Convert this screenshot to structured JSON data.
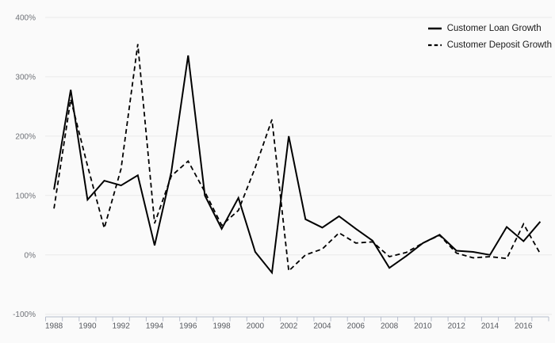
{
  "chart": {
    "legend": [
      {
        "label": "Customer Loan Growth",
        "style": "solid"
      },
      {
        "label": "Customer Deposit Growth",
        "style": "dashed"
      }
    ],
    "colors": {
      "background": "#fafafa",
      "line": "#000000",
      "grid": "#e9e9e9",
      "axis": "#b7bdcc",
      "x_tick_label": "#55585e",
      "y_tick_label": "#6e7177",
      "legend_text": "#1a1a1a"
    }
  },
  "chart_data": {
    "type": "line",
    "title": "",
    "xlabel": "",
    "ylabel": "",
    "grid": "horizontal",
    "legend_position": "top-right",
    "ylim": [
      -100,
      400
    ],
    "x": [
      1988,
      1989,
      1990,
      1991,
      1992,
      1993,
      1994,
      1995,
      1996,
      1997,
      1998,
      1999,
      2000,
      2001,
      2002,
      2003,
      2004,
      2005,
      2006,
      2007,
      2008,
      2009,
      2010,
      2011,
      2012,
      2013,
      2014,
      2015,
      2016,
      2017
    ],
    "series": [
      {
        "name": "Customer Loan Growth",
        "dash": "solid",
        "values": [
          110,
          278,
          93,
          125,
          117,
          134,
          16,
          140,
          336,
          100,
          44,
          96,
          5,
          -30,
          200,
          60,
          46,
          65,
          44,
          24,
          -22,
          -2,
          20,
          34,
          7,
          5,
          0,
          47,
          23,
          56
        ]
      },
      {
        "name": "Customer Deposit Growth",
        "dash": "dashed",
        "values": [
          78,
          262,
          150,
          45,
          145,
          355,
          53,
          133,
          158,
          106,
          50,
          75,
          147,
          228,
          -27,
          0,
          10,
          37,
          20,
          22,
          -3,
          4,
          20,
          33,
          3,
          -5,
          -3,
          -6,
          52,
          2
        ]
      }
    ],
    "y_ticks": [
      {
        "value": 400,
        "label": "400%"
      },
      {
        "value": 300,
        "label": "300%"
      },
      {
        "value": 200,
        "label": "200%"
      },
      {
        "value": 100,
        "label": "100%"
      },
      {
        "value": 0,
        "label": "0%"
      },
      {
        "value": -100,
        "label": "-100%"
      }
    ],
    "x_tick_labels": [
      "1988",
      "1990",
      "1992",
      "1994",
      "1996",
      "1998",
      "2000",
      "2002",
      "2004",
      "2006",
      "2008",
      "2010",
      "2012",
      "2014",
      "2016"
    ]
  }
}
